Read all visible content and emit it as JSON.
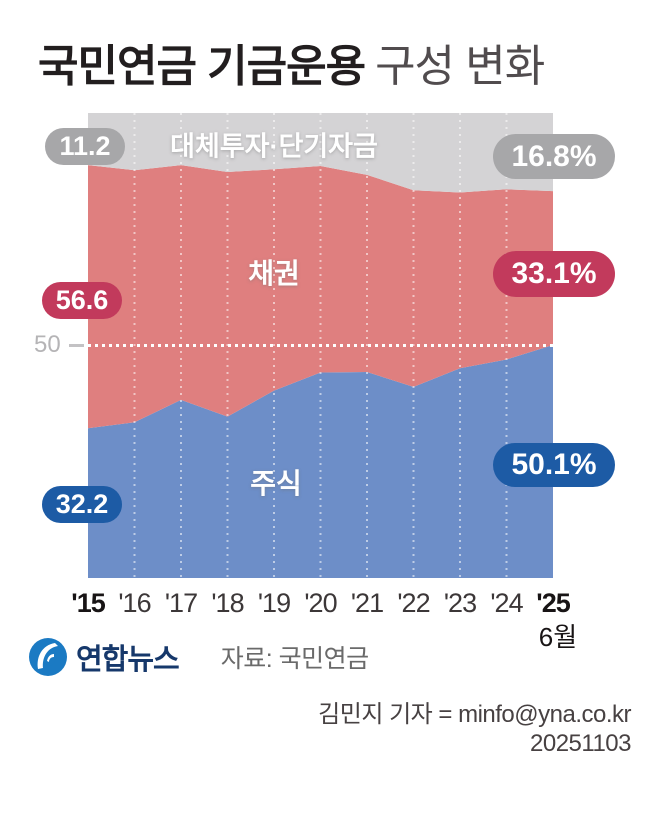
{
  "title": {
    "bold": "국민연금 기금운용",
    "light": "구성 변화"
  },
  "chart_data": {
    "type": "area",
    "stacked": true,
    "unit": "%",
    "ylim": [
      0,
      100
    ],
    "x_labels": [
      "'15",
      "'16",
      "'17",
      "'18",
      "'19",
      "'20",
      "'21",
      "'22",
      "'23",
      "'24",
      "'25"
    ],
    "x_sub_label": "6월",
    "gridline": {
      "value": 50,
      "label": "50",
      "color": "#ffffff"
    },
    "series": [
      {
        "name": "주식",
        "color": "#6d8ec8",
        "badge_color": "#1d5ba5",
        "start_label": "32.2",
        "end_label": "50.1%",
        "values": [
          32.2,
          33.5,
          38.3,
          34.7,
          40.3,
          44.2,
          44.3,
          41.1,
          45.1,
          47.0,
          50.1
        ]
      },
      {
        "name": "채권",
        "color": "#df7f7f",
        "badge_color": "#c23a5c",
        "start_label": "56.6",
        "end_label": "33.1%",
        "values": [
          56.6,
          54.2,
          50.5,
          52.6,
          47.6,
          44.4,
          42.4,
          42.3,
          37.8,
          36.6,
          33.1
        ]
      },
      {
        "name": "대체투자·단기자금",
        "color": "#d4d3d5",
        "badge_color": "#a7a7a9",
        "start_label": "11.2",
        "end_label": "16.8%",
        "values": [
          11.2,
          12.3,
          11.2,
          12.7,
          12.1,
          11.4,
          13.3,
          16.6,
          17.1,
          16.4,
          16.8
        ]
      }
    ]
  },
  "footer": {
    "logo_text": "연합뉴스",
    "source": "자료: 국민연금",
    "reporter": "김민지 기자 = minfo@yna.co.kr",
    "date": "20251103"
  }
}
